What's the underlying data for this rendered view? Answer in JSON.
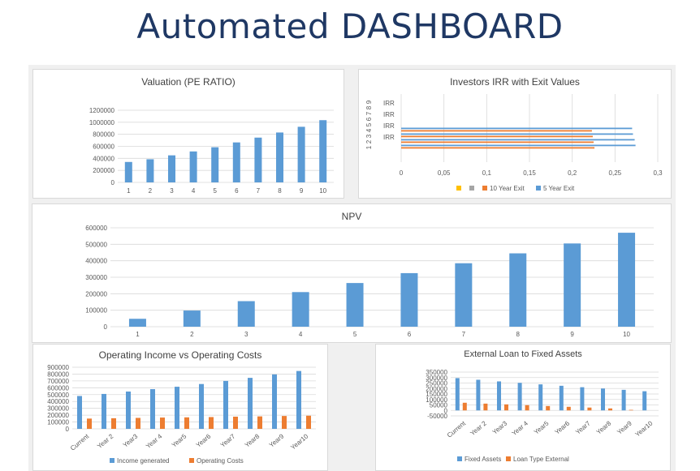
{
  "page": {
    "title": "Automated DASHBOARD"
  },
  "colors": {
    "blue": "#5b9bd5",
    "orange": "#ed7d31",
    "gray": "#a5a5a5",
    "yellow": "#ffc000",
    "title": "#1f3864"
  },
  "chart_data": [
    {
      "id": "valuation",
      "type": "bar",
      "title": "Valuation (PE RATIO)",
      "categories": [
        "1",
        "2",
        "3",
        "4",
        "5",
        "6",
        "7",
        "8",
        "9",
        "10"
      ],
      "series": [
        {
          "values": [
            340000,
            385000,
            450000,
            515000,
            585000,
            665000,
            745000,
            830000,
            925000,
            1035000
          ]
        }
      ],
      "ylim": [
        0,
        1200000
      ],
      "yticks": [
        "0",
        "200000",
        "400000",
        "600000",
        "800000",
        "1000000",
        "1200000"
      ],
      "grid": true
    },
    {
      "id": "irr",
      "type": "bar",
      "orientation": "horizontal",
      "title": "Investors IRR with Exit Values",
      "category_labels": [
        "1",
        "2",
        "3",
        "4",
        "5",
        "6",
        "7",
        "8",
        "9"
      ],
      "group_labels": [
        "IRR",
        "IRR",
        "IRR",
        "IRR"
      ],
      "xlim": [
        0,
        0.3
      ],
      "xticks": [
        "0",
        "0,05",
        "0,1",
        "0,15",
        "0,2",
        "0,25",
        "0,3"
      ],
      "series": [
        {
          "name": "",
          "color": "#ffc000",
          "values": [
            0,
            0,
            0,
            0
          ]
        },
        {
          "name": "",
          "color": "#a5a5a5",
          "values": [
            0,
            0,
            0,
            0
          ]
        },
        {
          "name": "10 Year Exit",
          "color": "#ed7d31",
          "values": [
            0.226,
            0.225,
            0.224,
            0.223
          ]
        },
        {
          "name": "5 Year Exit",
          "color": "#5b9bd5",
          "values": [
            0.274,
            0.273,
            0.271,
            0.27
          ]
        }
      ],
      "grid": true,
      "legend": "bottom"
    },
    {
      "id": "npv",
      "type": "bar",
      "title": "NPV",
      "categories": [
        "1",
        "2",
        "3",
        "4",
        "5",
        "6",
        "7",
        "8",
        "9",
        "10"
      ],
      "series": [
        {
          "values": [
            48000,
            98000,
            155000,
            210000,
            265000,
            325000,
            385000,
            445000,
            505000,
            570000
          ]
        }
      ],
      "ylim": [
        0,
        600000
      ],
      "yticks": [
        "0",
        "100000",
        "200000",
        "300000",
        "400000",
        "500000",
        "600000"
      ],
      "grid": true
    },
    {
      "id": "opincome",
      "type": "bar",
      "title": "Operating Income vs Operating Costs",
      "categories": [
        "Current",
        "Year 2",
        "Year3",
        "Year 4",
        "Year5",
        "Year6",
        "Year7",
        "Year8",
        "Year9",
        "Year10"
      ],
      "series": [
        {
          "name": "Income generated",
          "color": "#5b9bd5",
          "values": [
            480000,
            510000,
            545000,
            580000,
            615000,
            655000,
            700000,
            745000,
            795000,
            845000
          ]
        },
        {
          "name": "Operating Costs",
          "color": "#ed7d31",
          "values": [
            150000,
            155000,
            160000,
            165000,
            168000,
            172000,
            178000,
            182000,
            188000,
            192000
          ]
        }
      ],
      "ylim": [
        0,
        900000
      ],
      "yticks": [
        "0",
        "100000",
        "200000",
        "300000",
        "400000",
        "500000",
        "600000",
        "700000",
        "800000",
        "900000"
      ],
      "grid": true,
      "legend": "bottom"
    },
    {
      "id": "loan",
      "type": "bar",
      "title": "External Loan to Fixed Assets",
      "categories": [
        "Current",
        "Year 2",
        "Year3",
        "Year 4",
        "Year5",
        "Year6",
        "Year7",
        "Year8",
        "Year9",
        "Year10"
      ],
      "series": [
        {
          "name": "Fixed Assets",
          "color": "#5b9bd5",
          "values": [
            295000,
            280000,
            265000,
            252000,
            238000,
            225000,
            212000,
            200000,
            188000,
            175000
          ]
        },
        {
          "name": "Loan Type External",
          "color": "#ed7d31",
          "values": [
            70000,
            62000,
            55000,
            48000,
            40000,
            33000,
            26000,
            18000,
            5000,
            0
          ]
        }
      ],
      "ylim": [
        -50000,
        350000
      ],
      "yticks": [
        "-50000",
        "0",
        "50000",
        "100000",
        "150000",
        "200000",
        "250000",
        "300000",
        "350000"
      ],
      "grid": true,
      "legend": "bottom"
    }
  ]
}
